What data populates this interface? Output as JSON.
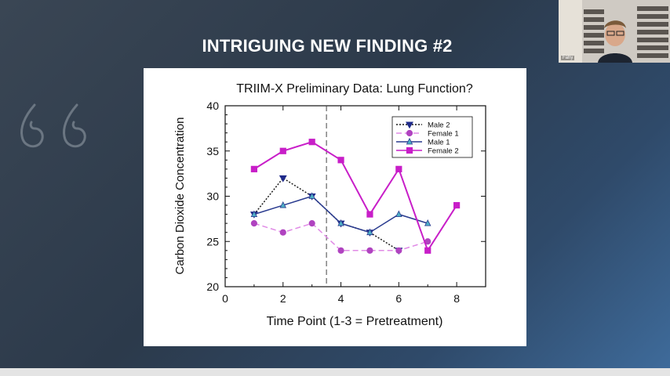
{
  "slide": {
    "title": "INTRIGUING NEW FINDING #2"
  },
  "webcam": {
    "participant_name": "Fahy"
  },
  "chart_data": {
    "type": "line",
    "title": "TRIIM-X Preliminary Data: Lung Function?",
    "xlabel": "Time Point (1-3 = Pretreatment)",
    "ylabel": "Carbon Dioxide Concentration",
    "xlim": [
      0,
      9
    ],
    "ylim": [
      20,
      40
    ],
    "xticks": [
      0,
      2,
      4,
      6,
      8
    ],
    "yticks": [
      20,
      25,
      30,
      35,
      40
    ],
    "vline": 3.5,
    "grid": false,
    "legend": "top-right",
    "series": [
      {
        "name": "Male 2",
        "color": "#1a1a1a",
        "marker": "triangle-down",
        "marker_color": "#1f2a8a",
        "dash": "2,2",
        "x": [
          1,
          2,
          3,
          4,
          5,
          6
        ],
        "y": [
          28,
          32,
          30,
          27,
          26,
          24
        ]
      },
      {
        "name": "Female 1",
        "color": "#e08ae6",
        "marker": "circle",
        "marker_color": "#b043c0",
        "dash": "7,4",
        "x": [
          1,
          2,
          3,
          4,
          5,
          6,
          7
        ],
        "y": [
          27,
          26,
          27,
          24,
          24,
          24,
          25
        ]
      },
      {
        "name": "Male 1",
        "color": "#2a3b8f",
        "marker": "triangle-up",
        "marker_color": "#4fb0c6",
        "dash": "",
        "x": [
          1,
          2,
          3,
          4,
          5,
          6,
          7
        ],
        "y": [
          28,
          29,
          30,
          27,
          26,
          28,
          27
        ]
      },
      {
        "name": "Female 2",
        "color": "#c81ec8",
        "marker": "square",
        "marker_color": "#c81ec8",
        "dash": "",
        "x": [
          1,
          2,
          3,
          4,
          5,
          6,
          7,
          8
        ],
        "y": [
          33,
          35,
          36,
          34,
          28,
          33,
          24,
          29
        ]
      }
    ]
  }
}
